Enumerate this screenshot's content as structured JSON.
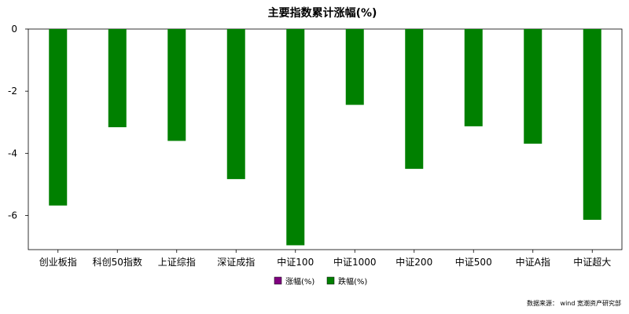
{
  "chart_data": {
    "type": "bar",
    "title": "主要指数累计涨幅(%)",
    "xlabel": "",
    "ylabel": "",
    "categories": [
      "创业板指",
      "科创50指数",
      "上证综指",
      "深证成指",
      "中证100",
      "中证1000",
      "中证200",
      "中证500",
      "中证A指",
      "中证超大"
    ],
    "values": [
      -5.68,
      -3.16,
      -3.6,
      -4.83,
      -6.96,
      -2.44,
      -4.5,
      -3.13,
      -3.69,
      -6.14
    ],
    "ylim": [
      -7.1,
      0
    ],
    "yticks": [
      0,
      -2,
      -4,
      -6
    ],
    "grid": false,
    "legend": {
      "position": "bottom-center",
      "entries": [
        {
          "label": "涨幅(%)",
          "color": "#800080"
        },
        {
          "label": "跌幅(%)",
          "color": "#008000"
        }
      ]
    },
    "bar_color_negative": "#008000",
    "bar_color_positive": "#800080"
  },
  "source_note": "数据来源：  wind 宽潮资产研究部"
}
